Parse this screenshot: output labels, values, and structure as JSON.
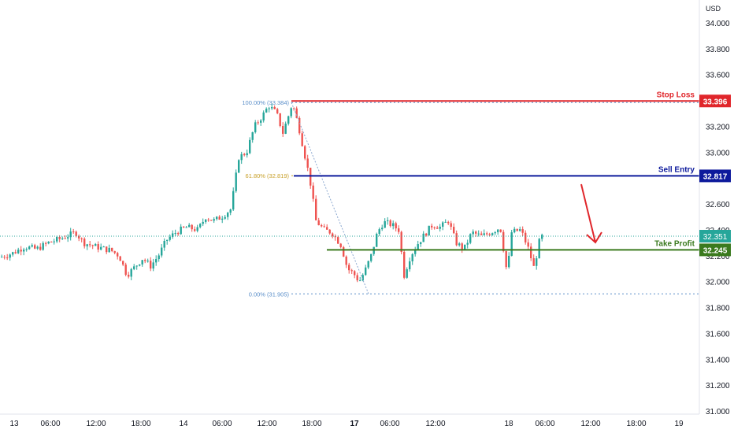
{
  "currency": "USD",
  "chart_data": {
    "type": "candlestick",
    "ylim": [
      31.0,
      34.0
    ],
    "y_ticks": [
      "34.000",
      "33.800",
      "33.600",
      "33.400",
      "33.200",
      "33.000",
      "32.800",
      "32.600",
      "32.400",
      "32.200",
      "32.000",
      "31.800",
      "31.600",
      "31.400",
      "31.200",
      "31.000"
    ],
    "x_ticks": [
      {
        "label": "13",
        "bold": false
      },
      {
        "label": "06:00",
        "bold": false
      },
      {
        "label": "12:00",
        "bold": false
      },
      {
        "label": "18:00",
        "bold": false
      },
      {
        "label": "14",
        "bold": false
      },
      {
        "label": "06:00",
        "bold": false
      },
      {
        "label": "12:00",
        "bold": false
      },
      {
        "label": "18:00",
        "bold": false
      },
      {
        "label": "17",
        "bold": true
      },
      {
        "label": "06:00",
        "bold": false
      },
      {
        "label": "12:00",
        "bold": false
      },
      {
        "label": "18",
        "bold": false
      },
      {
        "label": "06:00",
        "bold": false
      },
      {
        "label": "12:00",
        "bold": false
      },
      {
        "label": "18:00",
        "bold": false
      },
      {
        "label": "19",
        "bold": false
      }
    ],
    "price_path": [
      [
        0,
        32.19
      ],
      [
        15,
        32.22
      ],
      [
        30,
        32.27
      ],
      [
        45,
        32.25
      ],
      [
        60,
        32.3
      ],
      [
        75,
        32.33
      ],
      [
        95,
        32.38
      ],
      [
        105,
        32.3
      ],
      [
        120,
        32.27
      ],
      [
        140,
        32.24
      ],
      [
        150,
        32.2
      ],
      [
        160,
        32.05
      ],
      [
        168,
        32.1
      ],
      [
        180,
        32.18
      ],
      [
        190,
        32.12
      ],
      [
        200,
        32.2
      ],
      [
        210,
        32.32
      ],
      [
        222,
        32.38
      ],
      [
        235,
        32.42
      ],
      [
        250,
        32.4
      ],
      [
        260,
        32.5
      ],
      [
        270,
        32.47
      ],
      [
        280,
        32.5
      ],
      [
        292,
        32.56
      ],
      [
        302,
        32.96
      ],
      [
        312,
        33.0
      ],
      [
        322,
        33.2
      ],
      [
        332,
        33.28
      ],
      [
        340,
        33.36
      ],
      [
        350,
        33.3
      ],
      [
        358,
        33.15
      ],
      [
        365,
        33.28
      ],
      [
        370,
        33.38
      ],
      [
        378,
        33.2
      ],
      [
        385,
        33.0
      ],
      [
        392,
        32.8
      ],
      [
        400,
        32.47
      ],
      [
        410,
        32.4
      ],
      [
        420,
        32.38
      ],
      [
        432,
        32.28
      ],
      [
        440,
        32.1
      ],
      [
        448,
        32.06
      ],
      [
        455,
        32.0
      ],
      [
        462,
        32.08
      ],
      [
        470,
        32.2
      ],
      [
        478,
        32.38
      ],
      [
        486,
        32.46
      ],
      [
        496,
        32.44
      ],
      [
        505,
        32.4
      ],
      [
        512,
        32.05
      ],
      [
        520,
        32.2
      ],
      [
        530,
        32.3
      ],
      [
        540,
        32.38
      ],
      [
        548,
        32.44
      ],
      [
        558,
        32.42
      ],
      [
        568,
        32.47
      ],
      [
        578,
        32.3
      ],
      [
        588,
        32.25
      ],
      [
        598,
        32.38
      ],
      [
        610,
        32.35
      ],
      [
        622,
        32.38
      ],
      [
        634,
        32.42
      ],
      [
        643,
        32.05
      ],
      [
        648,
        32.38
      ],
      [
        660,
        32.4
      ],
      [
        670,
        32.25
      ],
      [
        677,
        32.1
      ],
      [
        683,
        32.3
      ],
      [
        688,
        32.36
      ]
    ],
    "last_price": 32.351,
    "last_price_label": "32.351",
    "levels": [
      {
        "name": "Stop Loss",
        "label": "33.396",
        "value": 33.396,
        "color": "#e0262b"
      },
      {
        "name": "Sell Entry",
        "label": "32.817",
        "value": 32.817,
        "color": "#0d1a9c"
      },
      {
        "name": "Take Profit",
        "label": "32.245",
        "value": 32.245,
        "color": "#3a7a1e"
      }
    ],
    "fib_levels": [
      {
        "label": "100.00% (33.384)",
        "value": 33.384,
        "color": "#5b8fc9"
      },
      {
        "label": "61.80% (32.819)",
        "value": 32.819,
        "color": "#c8a02a"
      },
      {
        "label": "0.00% (31.905)",
        "value": 31.905,
        "color": "#5b8fc9"
      }
    ],
    "colors": {
      "up": "#26a69a",
      "down": "#ef5350",
      "arrow": "#e0262b"
    }
  }
}
